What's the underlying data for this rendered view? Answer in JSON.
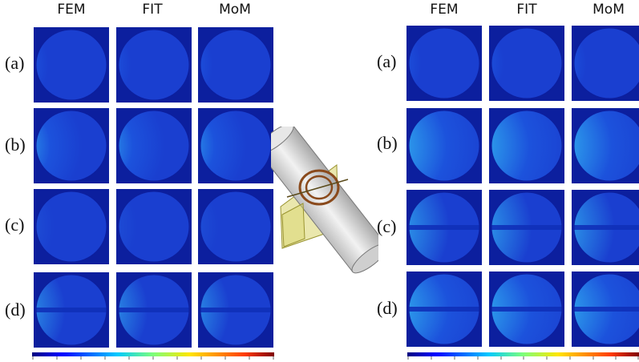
{
  "left_panel": {
    "columns": [
      "FEM",
      "FIT",
      "MoM"
    ],
    "rows": [
      "(a)",
      "(b)",
      "(c)",
      "(d)"
    ]
  },
  "right_panel": {
    "columns": [
      "FEM",
      "FIT",
      "MoM"
    ],
    "rows": [
      "(a)",
      "(b)",
      "(c)",
      "(d)"
    ]
  },
  "colors": {
    "tile_background": "#0c1f9e",
    "field_low": "#1a46d8",
    "field_mid": "#33c7e6",
    "field_high": "#e31d0e",
    "cylinder": "#dcdcdc",
    "plane": "#d9d46a",
    "coil": "#8a4a1c"
  },
  "icons": {
    "center": "cylinder-with-coil-icon"
  }
}
